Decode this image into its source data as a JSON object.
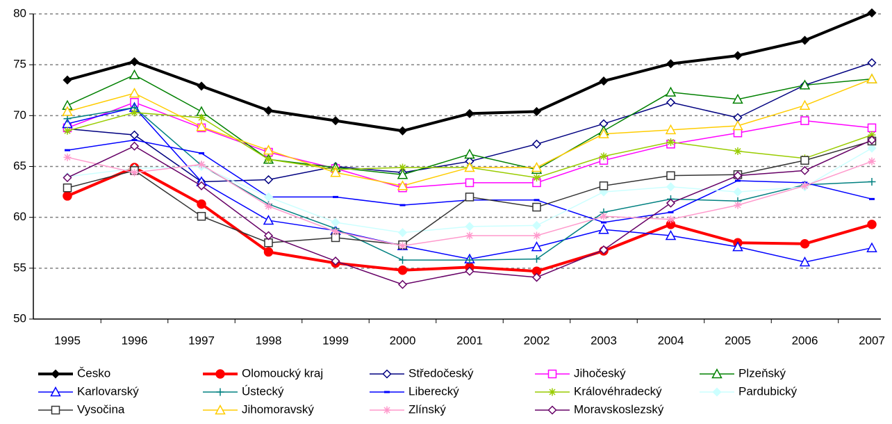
{
  "chart_data": {
    "type": "line",
    "categories": [
      "1995",
      "1996",
      "1997",
      "1998",
      "1999",
      "2000",
      "2001",
      "2002",
      "2003",
      "2004",
      "2005",
      "2006",
      "2007"
    ],
    "ylim": [
      50,
      80
    ],
    "yticks": [
      50,
      55,
      60,
      65,
      70,
      75,
      80
    ],
    "grid": true,
    "series": [
      {
        "name": "Česko",
        "color": "#000000",
        "marker": "diamond-filled",
        "width": 4,
        "values": [
          73.5,
          75.3,
          72.9,
          70.5,
          69.5,
          68.5,
          70.2,
          70.4,
          73.4,
          75.1,
          75.9,
          77.4,
          80.1
        ]
      },
      {
        "name": "Olomoucký kraj",
        "color": "#ff0000",
        "marker": "circle-filled",
        "width": 4,
        "values": [
          62.1,
          64.9,
          61.3,
          56.6,
          55.5,
          54.8,
          55.1,
          54.7,
          56.7,
          59.3,
          57.5,
          57.4,
          59.3
        ]
      },
      {
        "name": "Středočeský",
        "color": "#000080",
        "marker": "diamond",
        "width": 1.5,
        "values": [
          68.7,
          68.1,
          63.5,
          63.7,
          65.0,
          64.4,
          65.5,
          67.2,
          69.2,
          71.3,
          69.8,
          73.0,
          75.2
        ]
      },
      {
        "name": "Jihočeský",
        "color": "#ff00ff",
        "marker": "square",
        "width": 1.5,
        "values": [
          68.8,
          71.3,
          68.8,
          66.4,
          64.8,
          62.9,
          63.4,
          63.4,
          65.6,
          67.2,
          68.3,
          69.5,
          68.8
        ]
      },
      {
        "name": "Plzeňský",
        "color": "#008000",
        "marker": "triangle",
        "width": 1.5,
        "values": [
          71.0,
          74.0,
          70.4,
          65.7,
          64.9,
          64.2,
          66.2,
          64.7,
          68.5,
          72.3,
          71.6,
          73.0,
          73.6
        ]
      },
      {
        "name": "Karlovarský",
        "color": "#0000ff",
        "marker": "triangle",
        "width": 1.5,
        "values": [
          69.2,
          70.8,
          63.5,
          59.7,
          58.7,
          57.2,
          55.9,
          57.1,
          58.8,
          58.2,
          57.1,
          55.6,
          57.0
        ]
      },
      {
        "name": "Ústecký",
        "color": "#008080",
        "marker": "plus",
        "width": 1.5,
        "values": [
          69.7,
          70.8,
          65.1,
          61.3,
          58.9,
          55.8,
          55.8,
          55.9,
          60.5,
          61.8,
          61.6,
          63.2,
          63.5
        ]
      },
      {
        "name": "Liberecký",
        "color": "#0000ff",
        "marker": "dash",
        "width": 1.5,
        "values": [
          66.6,
          67.6,
          66.3,
          62.0,
          62.0,
          61.2,
          61.7,
          61.7,
          59.5,
          60.5,
          63.6,
          63.4,
          61.8
        ]
      },
      {
        "name": "Královéhradecký",
        "color": "#99cc00",
        "marker": "star",
        "width": 1.5,
        "values": [
          68.5,
          70.3,
          69.8,
          65.7,
          64.7,
          64.9,
          64.9,
          63.9,
          66.0,
          67.4,
          66.5,
          65.8,
          68.1
        ]
      },
      {
        "name": "Pardubický",
        "color": "#ccffff",
        "marker": "diamond-filled",
        "width": 1.5,
        "values": [
          64.0,
          64.8,
          65.0,
          62.0,
          59.5,
          58.5,
          59.1,
          59.2,
          62.5,
          63.0,
          62.5,
          63.0,
          66.8
        ]
      },
      {
        "name": "Vysočina",
        "color": "#333333",
        "marker": "square",
        "width": 1.5,
        "values": [
          62.9,
          64.6,
          60.1,
          57.5,
          58.0,
          57.3,
          62.0,
          61.0,
          63.1,
          64.1,
          64.2,
          65.6,
          67.5
        ]
      },
      {
        "name": "Jihomoravský",
        "color": "#ffcc00",
        "marker": "triangle",
        "width": 1.5,
        "values": [
          70.4,
          72.2,
          68.9,
          66.6,
          64.4,
          63.1,
          64.9,
          64.9,
          68.2,
          68.6,
          69.0,
          71.0,
          73.6
        ]
      },
      {
        "name": "Zlínský",
        "color": "#ff99cc",
        "marker": "star",
        "width": 1.5,
        "values": [
          65.9,
          64.4,
          65.2,
          61.1,
          58.6,
          57.2,
          58.2,
          58.2,
          60.1,
          59.8,
          61.2,
          63.1,
          65.5
        ]
      },
      {
        "name": "Moravskoslezský",
        "color": "#660066",
        "marker": "diamond",
        "width": 1.5,
        "values": [
          63.9,
          67.0,
          63.1,
          58.2,
          55.7,
          53.4,
          54.7,
          54.1,
          56.8,
          61.4,
          64.1,
          64.6,
          67.6
        ]
      }
    ]
  }
}
